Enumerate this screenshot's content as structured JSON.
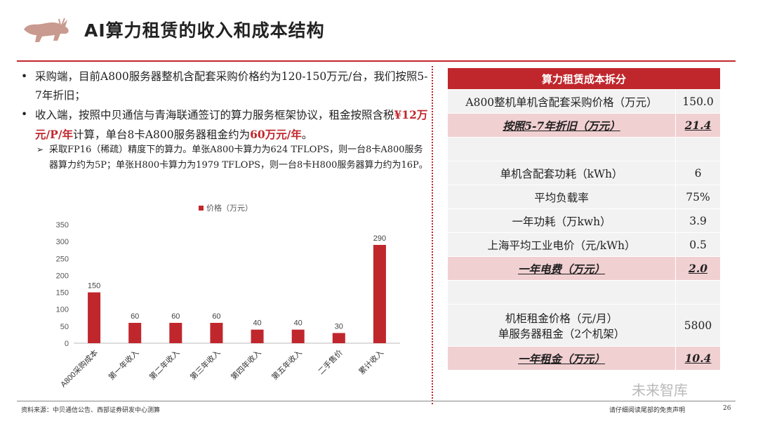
{
  "header": {
    "title": "AI算力租赁的收入和成本结构"
  },
  "bullets": [
    {
      "text": "采购端，目前A800服务器整机含配套采购价格约为120-150万元/台，我们按照5-7年折旧；"
    },
    {
      "pre": "收入端，按照中贝通信与青海联通签订的算力服务框架协议，租金按照含税",
      "em1": "¥12万元/P/年",
      "mid": "计算，单台8卡A800服务器租金约为",
      "em2": "60万元/年",
      "post": "。"
    }
  ],
  "sub_bullet": "采取FP16（稀疏）精度下的算力。单张A800卡算力为624 TFLOPS，则一台8卡A800服务器算力约为5P；单张H800卡算力为1979 TFLOPS，则一台8卡H800服务器算力约为16P。",
  "chart_data": {
    "type": "bar",
    "categories": [
      "A800采购成本",
      "第一年收入",
      "第二年收入",
      "第三年收入",
      "第四年收入",
      "第五年收入",
      "二手售价",
      "累计收入"
    ],
    "series": [
      {
        "name": "价格（万元）",
        "values": [
          150,
          60,
          60,
          60,
          40,
          40,
          30,
          290
        ]
      }
    ],
    "yticks": [
      "0",
      "50",
      "100",
      "150",
      "200",
      "250",
      "300",
      "350"
    ],
    "ylim": [
      0,
      350
    ],
    "legend": "top-center",
    "grid": false,
    "color": "#c0272d"
  },
  "table": {
    "header": "算力租赁成本拆分",
    "rows": [
      {
        "label": "A800整机单机含配套采购价格（万元）",
        "value": "150.0",
        "style": "plain"
      },
      {
        "label": "按照5-7年折旧（万元）",
        "value": "21.4",
        "style": "pink-bold"
      },
      {
        "label": "",
        "value": "",
        "style": "plain"
      },
      {
        "label": "单机含配套功耗（kWh）",
        "value": "6",
        "style": "plain"
      },
      {
        "label": "平均负载率",
        "value": "75%",
        "style": "plain"
      },
      {
        "label": "一年功耗（万kwh）",
        "value": "3.9",
        "style": "plain"
      },
      {
        "label": "上海平均工业电价（元/kWh）",
        "value": "0.5",
        "style": "plain"
      },
      {
        "label": "一年电费（万元）",
        "value": "2.0",
        "style": "pink-bold"
      },
      {
        "label": "",
        "value": "",
        "style": "plain"
      },
      {
        "label": "机柜租金价格（元/月）",
        "label2": "单服务器租金（2个机架）",
        "value": "5800",
        "style": "plain-tall"
      },
      {
        "label": "一年租金（万元）",
        "value": "10.4",
        "style": "pink-bold"
      }
    ]
  },
  "footer": {
    "source": "资料来源：中贝通信公告、西部证券研发中心测算",
    "disclaimer": "请仔细阅读尾部的免责声明",
    "page": "26",
    "watermark": "未来智库"
  },
  "colors": {
    "accent": "#c0272d",
    "pink": "#f1d0d2",
    "grey": "#f2f2f2"
  }
}
